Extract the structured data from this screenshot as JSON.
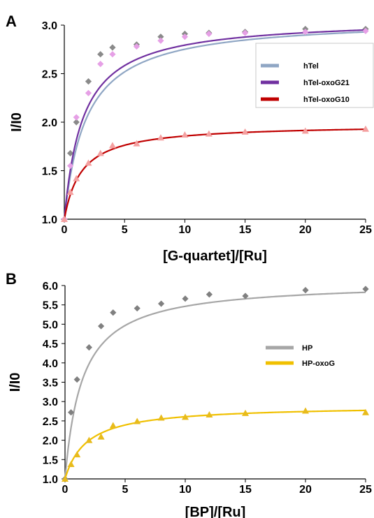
{
  "chart_data": [
    {
      "type": "scatter",
      "panel": "A",
      "xlabel": "[G-quartet]/[Ru]",
      "ylabel": "I/I0",
      "xlim": [
        0,
        25
      ],
      "ylim": [
        1.0,
        3.0
      ],
      "xticks": [
        0,
        5,
        10,
        15,
        20,
        25
      ],
      "yticks": [
        "1.0",
        "1.5",
        "2.0",
        "2.5",
        "3.0"
      ],
      "legend_position": "right",
      "series": [
        {
          "name": "hTel",
          "line_color": "#8fa6c4",
          "marker": "diamond",
          "marker_color": "#8a8a8a",
          "fit_max": 2.07,
          "fit_k": 0.55,
          "x": [
            0,
            0.5,
            1,
            2,
            3,
            4,
            6,
            8,
            10,
            12,
            15,
            20,
            25
          ],
          "y": [
            1.0,
            1.68,
            2.0,
            2.42,
            2.7,
            2.77,
            2.8,
            2.88,
            2.91,
            2.92,
            2.93,
            2.96,
            2.96
          ]
        },
        {
          "name": "hTel-oxoG21",
          "line_color": "#7030a0",
          "marker": "diamond",
          "marker_color": "#e6a0e6",
          "fit_max": 2.07,
          "fit_k": 0.65,
          "x": [
            0,
            0.5,
            1,
            2,
            3,
            4,
            6,
            8,
            10,
            12,
            15,
            20,
            25
          ],
          "y": [
            1.0,
            1.55,
            2.05,
            2.3,
            2.6,
            2.7,
            2.78,
            2.84,
            2.88,
            2.91,
            2.92,
            2.93,
            2.94
          ]
        },
        {
          "name": "hTel-oxoG10",
          "line_color": "#c00000",
          "marker": "triangle",
          "marker_color": "#f4a0a0",
          "fit_max": 0.98,
          "fit_k": 0.7,
          "x": [
            0,
            0.5,
            1,
            2,
            3,
            4,
            6,
            8,
            10,
            12,
            15,
            20,
            25
          ],
          "y": [
            1.0,
            1.28,
            1.42,
            1.58,
            1.68,
            1.76,
            1.78,
            1.84,
            1.87,
            1.88,
            1.9,
            1.91,
            1.93
          ]
        }
      ]
    },
    {
      "type": "scatter",
      "panel": "B",
      "xlabel": "[BP]/[Ru]",
      "ylabel": "I/I0",
      "xlim": [
        0,
        25
      ],
      "ylim": [
        1.0,
        6.0
      ],
      "xticks": [
        0,
        5,
        10,
        15,
        20,
        25
      ],
      "yticks": [
        "1.0",
        "1.5",
        "2.0",
        "2.5",
        "3.0",
        "3.5",
        "4.0",
        "4.5",
        "5.0",
        "5.5",
        "6.0"
      ],
      "legend_position": "right",
      "series": [
        {
          "name": "HP",
          "line_color": "#a6a6a6",
          "marker": "diamond",
          "marker_color": "#808080",
          "fit_max": 5.1,
          "fit_k": 0.7,
          "x": [
            0,
            0.5,
            1,
            2,
            3,
            4,
            6,
            8,
            10,
            12,
            15,
            20,
            25
          ],
          "y": [
            1.0,
            2.72,
            3.57,
            4.4,
            4.95,
            5.3,
            5.41,
            5.53,
            5.66,
            5.77,
            5.73,
            5.88,
            5.91
          ]
        },
        {
          "name": "HP-oxoG",
          "line_color": "#f0c000",
          "marker": "triangle",
          "marker_color": "#e8bb1c",
          "fit_max": 1.9,
          "fit_k": 0.55,
          "x": [
            0,
            0.5,
            1,
            2,
            3,
            4,
            6,
            8,
            10,
            12,
            15,
            20,
            25
          ],
          "y": [
            1.0,
            1.38,
            1.63,
            2.0,
            2.09,
            2.38,
            2.49,
            2.58,
            2.6,
            2.66,
            2.7,
            2.76,
            2.72
          ]
        }
      ]
    }
  ]
}
